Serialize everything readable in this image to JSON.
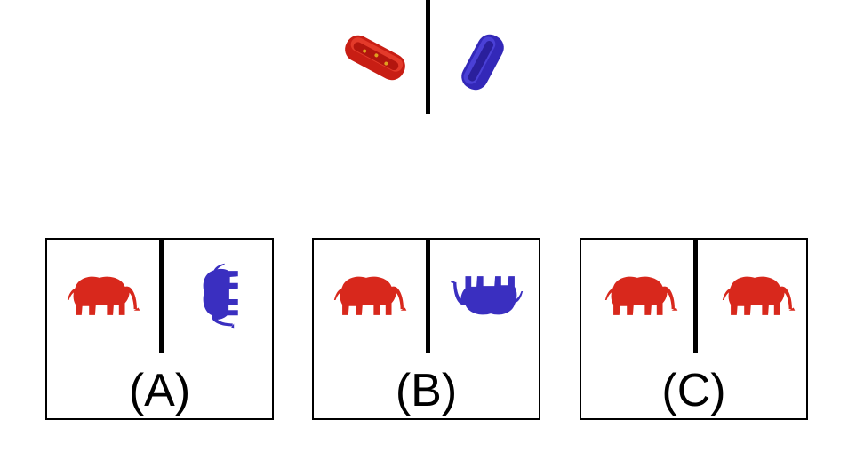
{
  "colors": {
    "red": "#d8281c",
    "blue": "#3a2fc0",
    "line": "#000000"
  },
  "reference": {
    "left_object": "hotdog-red-icon",
    "right_object": "hotdog-blue-icon"
  },
  "options": [
    {
      "label": "(A)",
      "left_icon": "elephant-red-icon",
      "right_icon": "elephant-blue-rotated-icon"
    },
    {
      "label": "(B)",
      "left_icon": "elephant-red-icon",
      "right_icon": "elephant-blue-upside-down-icon"
    },
    {
      "label": "(C)",
      "left_icon": "elephant-red-icon",
      "right_icon": "elephant-red-icon"
    }
  ]
}
